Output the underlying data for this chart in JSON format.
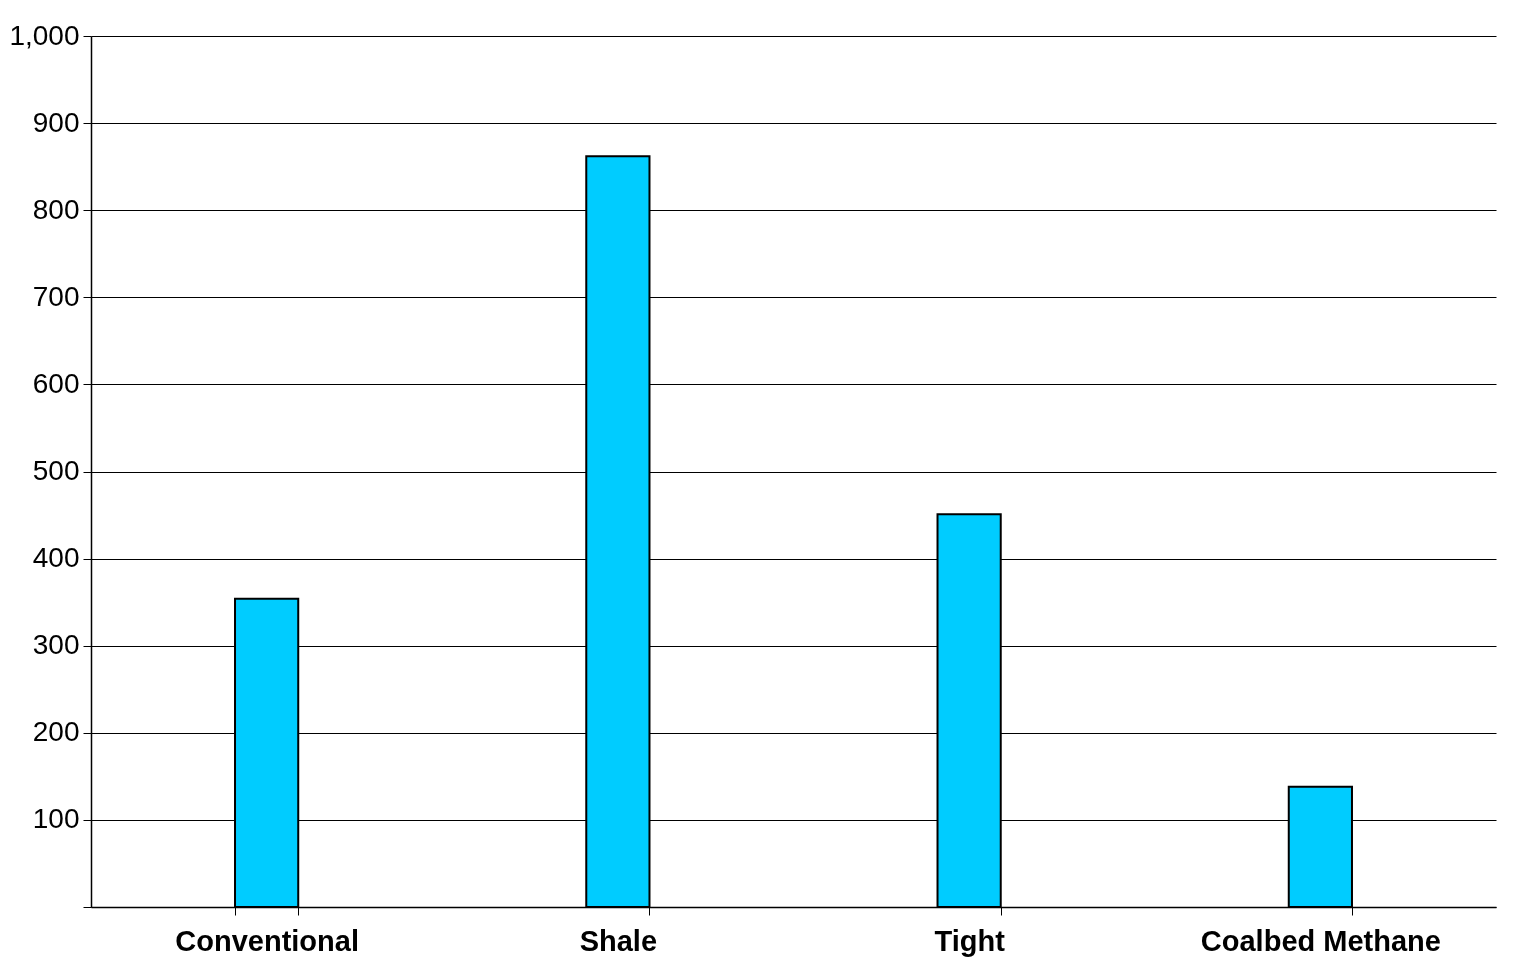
{
  "chart_data": {
    "type": "bar",
    "categories": [
      "Conventional",
      "Shale",
      "Tight",
      "Coalbed Methane"
    ],
    "values": [
      354,
      862,
      451,
      138
    ],
    "color": "#00ccff",
    "ylim": [
      0,
      1000
    ],
    "yticks": [
      {
        "value": 0,
        "label": null
      },
      100,
      200,
      300,
      400,
      500,
      600,
      700,
      800,
      900,
      {
        "value": 1000,
        "label": "1,000"
      }
    ],
    "grid": "y"
  }
}
